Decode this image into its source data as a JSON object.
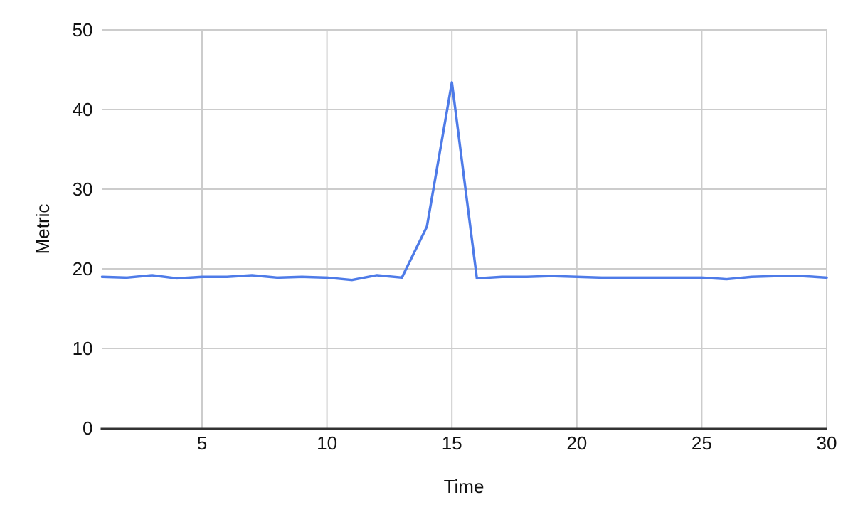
{
  "chart_data": {
    "type": "line",
    "title": "",
    "xlabel": "Time",
    "ylabel": "Metric",
    "x": [
      1,
      2,
      3,
      4,
      5,
      6,
      7,
      8,
      9,
      10,
      11,
      12,
      13,
      14,
      15,
      16,
      17,
      18,
      19,
      20,
      21,
      22,
      23,
      24,
      25,
      26,
      27,
      28,
      29,
      30
    ],
    "series": [
      {
        "name": "Metric",
        "values": [
          19.0,
          18.9,
          19.2,
          18.8,
          19.0,
          19.0,
          19.2,
          18.9,
          19.0,
          18.9,
          18.6,
          19.2,
          18.9,
          25.3,
          43.4,
          18.8,
          19.0,
          19.0,
          19.1,
          19.0,
          18.9,
          18.9,
          18.9,
          18.9,
          18.9,
          18.7,
          19.0,
          19.1,
          19.1,
          18.9
        ]
      }
    ],
    "x_ticks": [
      5,
      10,
      15,
      20,
      25,
      30
    ],
    "y_ticks": [
      0,
      10,
      20,
      30,
      40,
      50
    ],
    "xlim": [
      1,
      30
    ],
    "ylim": [
      0,
      50
    ],
    "grid": true,
    "legend": false,
    "colors": {
      "line": "#4e7be8",
      "gridline": "#cccccc",
      "axis_line": "#333333",
      "label_text": "#111111",
      "background": "#ffffff"
    }
  }
}
